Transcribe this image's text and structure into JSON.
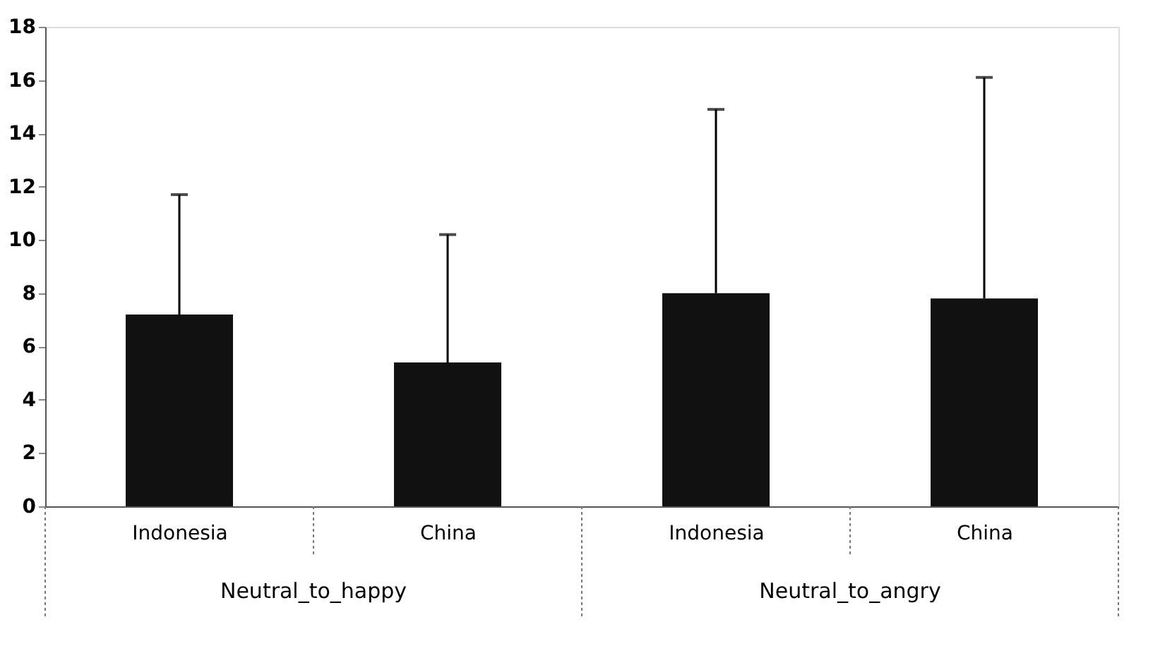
{
  "chart_data": {
    "type": "bar",
    "categories": [
      "Indonesia",
      "China",
      "Indonesia",
      "China"
    ],
    "values": [
      7.2,
      5.4,
      8.0,
      7.8
    ],
    "errors": [
      [
        7.2,
        11.7
      ],
      [
        5.4,
        10.2
      ],
      [
        8.0,
        14.9
      ],
      [
        7.8,
        16.1
      ]
    ],
    "color": "#111111",
    "ylim": [
      0,
      18
    ],
    "yticks": [
      0,
      2,
      4,
      6,
      8,
      10,
      12,
      14,
      16,
      18
    ],
    "grid": false,
    "annotations": [
      "Neutral_to_happy",
      "Neutral_to_angry"
    ]
  }
}
